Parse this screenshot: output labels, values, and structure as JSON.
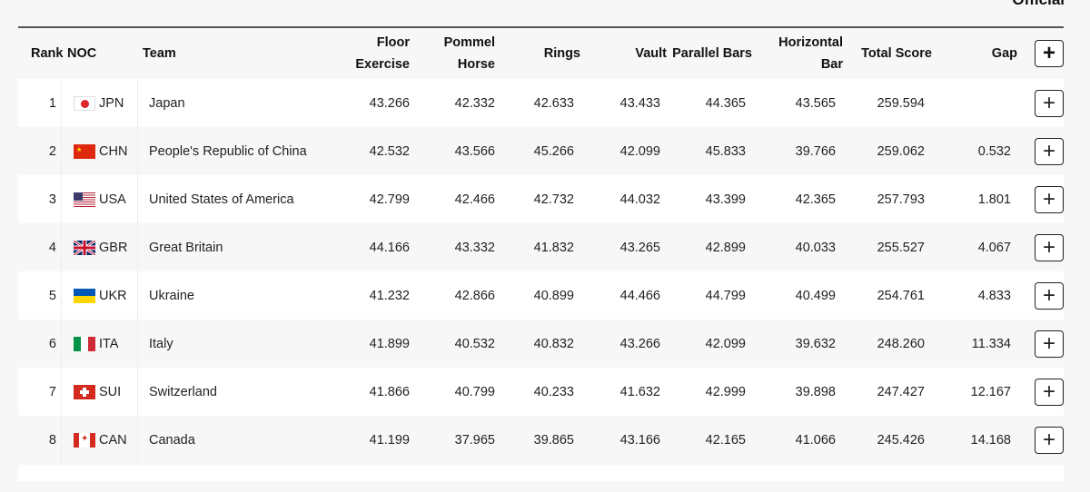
{
  "status": "Official",
  "columns": {
    "rank": "Rank",
    "noc": "NOC",
    "team": "Team",
    "floor": "Floor Exercise",
    "pommel": "Pommel Horse",
    "rings": "Rings",
    "vault": "Vault",
    "parallel": "Parallel Bars",
    "horizontal": "Horizontal Bar",
    "total": "Total Score",
    "gap": "Gap",
    "expand": "+"
  },
  "rows": [
    {
      "rank": "1",
      "noc": "JPN",
      "flag": "japan",
      "team": "Japan",
      "floor": "43.266",
      "pommel": "42.332",
      "rings": "42.633",
      "vault": "43.433",
      "parallel": "44.365",
      "horizontal": "43.565",
      "total": "259.594",
      "gap": "",
      "expand": "+"
    },
    {
      "rank": "2",
      "noc": "CHN",
      "flag": "china",
      "team": "People's Republic of China",
      "floor": "42.532",
      "pommel": "43.566",
      "rings": "45.266",
      "vault": "42.099",
      "parallel": "45.833",
      "horizontal": "39.766",
      "total": "259.062",
      "gap": "0.532",
      "expand": "+"
    },
    {
      "rank": "3",
      "noc": "USA",
      "flag": "usa",
      "team": "United States of America",
      "floor": "42.799",
      "pommel": "42.466",
      "rings": "42.732",
      "vault": "44.032",
      "parallel": "43.399",
      "horizontal": "42.365",
      "total": "257.793",
      "gap": "1.801",
      "expand": "+"
    },
    {
      "rank": "4",
      "noc": "GBR",
      "flag": "uk",
      "team": "Great Britain",
      "floor": "44.166",
      "pommel": "43.332",
      "rings": "41.832",
      "vault": "43.265",
      "parallel": "42.899",
      "horizontal": "40.033",
      "total": "255.527",
      "gap": "4.067",
      "expand": "+"
    },
    {
      "rank": "5",
      "noc": "UKR",
      "flag": "ukraine",
      "team": "Ukraine",
      "floor": "41.232",
      "pommel": "42.866",
      "rings": "40.899",
      "vault": "44.466",
      "parallel": "44.799",
      "horizontal": "40.499",
      "total": "254.761",
      "gap": "4.833",
      "expand": "+"
    },
    {
      "rank": "6",
      "noc": "ITA",
      "flag": "italy",
      "team": "Italy",
      "floor": "41.899",
      "pommel": "40.532",
      "rings": "40.832",
      "vault": "43.266",
      "parallel": "42.099",
      "horizontal": "39.632",
      "total": "248.260",
      "gap": "11.334",
      "expand": "+"
    },
    {
      "rank": "7",
      "noc": "SUI",
      "flag": "switzerland",
      "team": "Switzerland",
      "floor": "41.866",
      "pommel": "40.799",
      "rings": "40.233",
      "vault": "41.632",
      "parallel": "42.999",
      "horizontal": "39.898",
      "total": "247.427",
      "gap": "12.167",
      "expand": "+"
    },
    {
      "rank": "8",
      "noc": "CAN",
      "flag": "canada",
      "team": "Canada",
      "floor": "41.199",
      "pommel": "37.965",
      "rings": "39.865",
      "vault": "43.166",
      "parallel": "42.165",
      "horizontal": "41.066",
      "total": "245.426",
      "gap": "14.168",
      "expand": "+"
    }
  ]
}
